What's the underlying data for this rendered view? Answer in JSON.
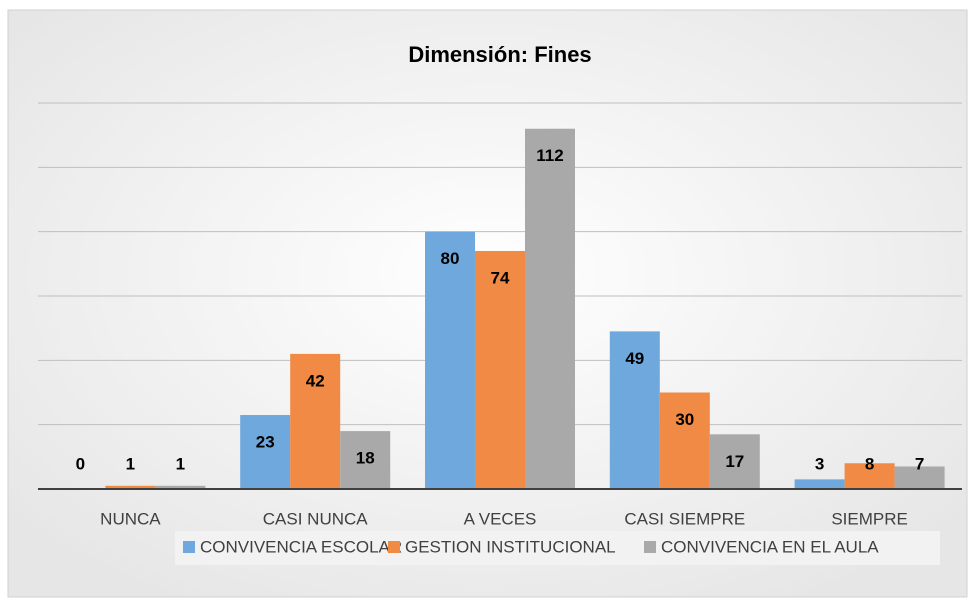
{
  "chart_data": {
    "type": "bar",
    "title": "Dimensión:  Fines",
    "categories": [
      "NUNCA",
      "CASI NUNCA",
      "A VECES",
      "CASI SIEMPRE",
      "SIEMPRE"
    ],
    "series": [
      {
        "name": "CONVIVENCIA ESCOLAR",
        "color": "#6fa8dc",
        "values": [
          0,
          23,
          80,
          49,
          3
        ]
      },
      {
        "name": "GESTION INSTITUCIONAL",
        "color": "#f08a44",
        "values": [
          1,
          42,
          74,
          30,
          8
        ]
      },
      {
        "name": "CONVIVENCIA EN EL AULA",
        "color": "#a9a9a9",
        "values": [
          1,
          18,
          112,
          17,
          7
        ]
      }
    ],
    "ylim": [
      0,
      120
    ],
    "yticks": [
      0,
      20,
      40,
      60,
      80,
      100,
      120
    ],
    "grid": true,
    "legend": "bottom"
  }
}
